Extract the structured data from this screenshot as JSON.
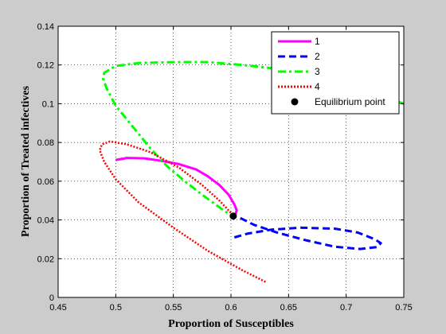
{
  "chart_data": {
    "type": "line",
    "title": "",
    "xlabel": "Proportion of Susceptibles",
    "ylabel": "Proportion of Treated infectives",
    "xlim": [
      0.45,
      0.75
    ],
    "ylim": [
      0,
      0.14
    ],
    "xticks": [
      0.45,
      0.5,
      0.55,
      0.6,
      0.65,
      0.7,
      0.75
    ],
    "yticks": [
      0,
      0.02,
      0.04,
      0.06,
      0.08,
      0.1,
      0.12,
      0.14
    ],
    "xtick_labels": [
      "0.45",
      "0.5",
      "0.55",
      "0.6",
      "0.65",
      "0.7",
      "0.75"
    ],
    "ytick_labels": [
      "0",
      "0.02",
      "0.04",
      "0.06",
      "0.08",
      "0.1",
      "0.12",
      "0.14"
    ],
    "grid": true,
    "legend_position": "top-right",
    "series": [
      {
        "name": "1",
        "color": "#ff00ff",
        "style": "solid",
        "points": [
          [
            0.5,
            0.071
          ],
          [
            0.51,
            0.072
          ],
          [
            0.525,
            0.0718
          ],
          [
            0.54,
            0.0705
          ],
          [
            0.555,
            0.0688
          ],
          [
            0.57,
            0.066
          ],
          [
            0.58,
            0.0625
          ],
          [
            0.59,
            0.058
          ],
          [
            0.598,
            0.053
          ],
          [
            0.603,
            0.048
          ],
          [
            0.605,
            0.045
          ],
          [
            0.604,
            0.043
          ],
          [
            0.601,
            0.042
          ]
        ]
      },
      {
        "name": "2",
        "color": "#0000ff",
        "style": "dashed",
        "points": [
          [
            0.603,
            0.031
          ],
          [
            0.615,
            0.033
          ],
          [
            0.635,
            0.035
          ],
          [
            0.66,
            0.036
          ],
          [
            0.69,
            0.0355
          ],
          [
            0.71,
            0.0335
          ],
          [
            0.725,
            0.03
          ],
          [
            0.73,
            0.028
          ],
          [
            0.727,
            0.026
          ],
          [
            0.712,
            0.025
          ],
          [
            0.69,
            0.0262
          ],
          [
            0.665,
            0.0295
          ],
          [
            0.64,
            0.0335
          ],
          [
            0.62,
            0.0375
          ],
          [
            0.608,
            0.041
          ],
          [
            0.602,
            0.042
          ]
        ]
      },
      {
        "name": "3",
        "color": "#00ff00",
        "style": "dashdot",
        "points": [
          [
            0.75,
            0.1
          ],
          [
            0.73,
            0.104
          ],
          [
            0.7,
            0.109
          ],
          [
            0.67,
            0.114
          ],
          [
            0.64,
            0.118
          ],
          [
            0.61,
            0.12
          ],
          [
            0.58,
            0.1215
          ],
          [
            0.55,
            0.1215
          ],
          [
            0.52,
            0.121
          ],
          [
            0.5,
            0.1195
          ],
          [
            0.49,
            0.116
          ],
          [
            0.489,
            0.113
          ],
          [
            0.492,
            0.108
          ],
          [
            0.5,
            0.099
          ],
          [
            0.515,
            0.088
          ],
          [
            0.53,
            0.077
          ],
          [
            0.545,
            0.0675
          ],
          [
            0.56,
            0.06
          ],
          [
            0.575,
            0.053
          ],
          [
            0.59,
            0.0465
          ],
          [
            0.601,
            0.042
          ]
        ]
      },
      {
        "name": "4",
        "color": "#ff0000",
        "style": "dotted",
        "points": [
          [
            0.63,
            0.008
          ],
          [
            0.61,
            0.014
          ],
          [
            0.58,
            0.024
          ],
          [
            0.55,
            0.036
          ],
          [
            0.52,
            0.049
          ],
          [
            0.5,
            0.061
          ],
          [
            0.49,
            0.07
          ],
          [
            0.486,
            0.076
          ],
          [
            0.488,
            0.079
          ],
          [
            0.495,
            0.0805
          ],
          [
            0.51,
            0.079
          ],
          [
            0.53,
            0.075
          ],
          [
            0.555,
            0.067
          ],
          [
            0.575,
            0.058
          ],
          [
            0.59,
            0.05
          ],
          [
            0.601,
            0.043
          ]
        ]
      }
    ],
    "markers": [
      {
        "name": "Equilibrium point",
        "color": "#000000",
        "x": 0.602,
        "y": 0.042
      }
    ],
    "legend": [
      {
        "label": "1",
        "color": "#ff00ff",
        "style": "solid"
      },
      {
        "label": "2",
        "color": "#0000ff",
        "style": "dashed"
      },
      {
        "label": "3",
        "color": "#00ff00",
        "style": "dashdot"
      },
      {
        "label": "4",
        "color": "#ff0000",
        "style": "dotted"
      },
      {
        "label": "Equilibrium point",
        "color": "#000000",
        "style": "marker"
      }
    ]
  }
}
